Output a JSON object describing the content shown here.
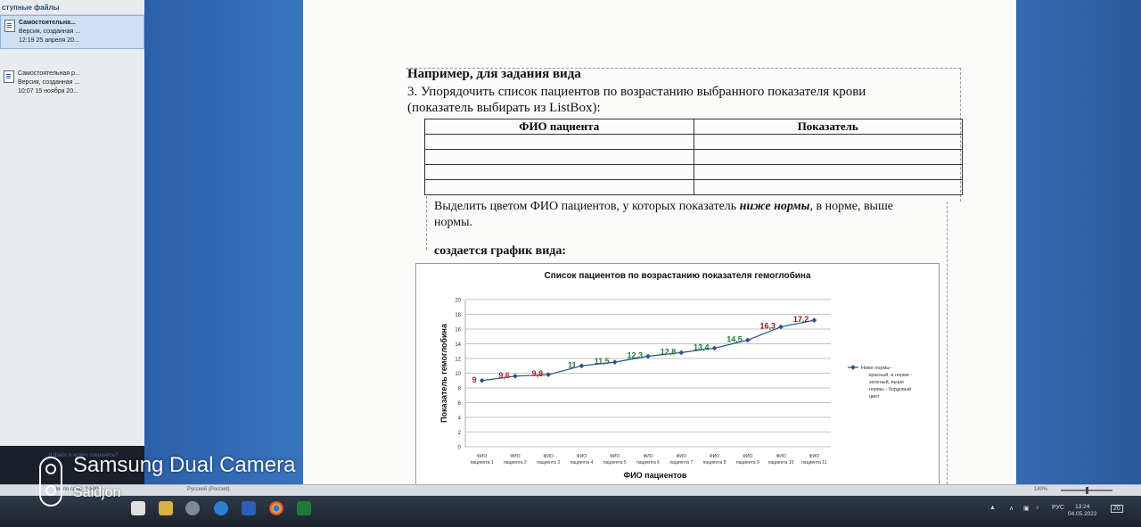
{
  "recovery_panel": {
    "heading": "ступные файлы",
    "items": [
      {
        "title": "Самостоятельна...",
        "line2": "Версия, созданная ...",
        "line3": "12:19 25 апреля 20..."
      },
      {
        "title": "Самостоятельная р...",
        "line2": "Версия, созданная ...",
        "line3": "10:07 15 ноября 20..."
      }
    ],
    "question": "...й файл я нужно сохранить?"
  },
  "document": {
    "example_heading": "Например, для задания вида",
    "task_line1": "3.  Упорядочить  список  пациентов  по  возрастанию  выбранного  показателя  крови",
    "task_line2": "(показатель выбирать из ListBox):",
    "table_headers": [
      "ФИО пациента",
      "Показатель"
    ],
    "table_rows": 4,
    "highlight_line1_a": "Выделить цветом ФИО пациентов, у которых показатель ",
    "highlight_line1_b": "ниже нормы",
    "highlight_line1_c": ", в норме, выше",
    "highlight_line2": "нормы.",
    "chart_intro": "создается график вида:"
  },
  "chart_data": {
    "type": "line",
    "title": "Список пациентов по возрастанию показателя гемоглобина",
    "xlabel": "ФИО пациентов",
    "ylabel": "Показатель гемоглобина",
    "ylim": [
      0,
      20
    ],
    "yticks": [
      0,
      2,
      4,
      6,
      8,
      10,
      12,
      14,
      16,
      18,
      20
    ],
    "grid": true,
    "legend_position": "right",
    "categories": [
      "ФИО пациента 1",
      "ФИО пациента 2",
      "ФИО пациента 3",
      "ФИО пациента 4",
      "ФИО пациента 5",
      "ФИО пациента 6",
      "ФИО пациента 7",
      "ФИО пациента 8",
      "ФИО пациента 9",
      "ФИО пациента 10",
      "ФИО пациента 11"
    ],
    "series": [
      {
        "name": "Ниже нормы - красный, в норме - зеленый, выше нормы - бордовый цвет",
        "values": [
          9,
          9.6,
          9.8,
          11,
          11.5,
          12.3,
          12.8,
          13.4,
          14.5,
          16.3,
          17.2
        ],
        "labels": [
          "9",
          "9,6",
          "9,8",
          "11",
          "11,5",
          "12,3",
          "12,8",
          "13,4",
          "14,5",
          "16,3",
          "17,2"
        ],
        "label_colors": [
          "#c0171d",
          "#c0171d",
          "#c0171d",
          "#1f7a3a",
          "#1f7a3a",
          "#1f7a3a",
          "#1f7a3a",
          "#1f7a3a",
          "#1f7a3a",
          "#8e1b2a",
          "#8e1b2a"
        ],
        "line_color": "#2b4f8c"
      }
    ],
    "legend_lines": [
      "Ниже нормы -",
      "красный, в норме -",
      "зеленый, выше",
      "нормы - бордовый",
      "цвет"
    ]
  },
  "statusbar": {
    "words": "Число слов: 2 800",
    "language": "Русский (Россия)",
    "zoom": "140%"
  },
  "taskbar": {
    "lang": "РУС",
    "time": "13:24",
    "date": "04.05.2022",
    "notifications": "20"
  },
  "watermark": {
    "title": "Samsung Dual Camera",
    "subtitle": "Saidjon"
  }
}
